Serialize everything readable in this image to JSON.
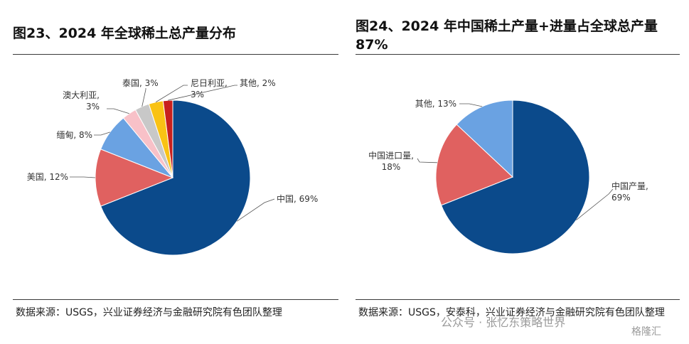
{
  "left_panel": {
    "title": "图23、2024 年全球稀土总产量分布",
    "source": "数据来源：USGS，兴业证券经济与金融研究院有色团队整理"
  },
  "right_panel": {
    "title": "图24、2024 年中国稀土产量+进量占全球总产量87%",
    "source": "数据来源：USGS，安泰科，兴业证券经济与金融研究院有色团队整理"
  },
  "watermark": {
    "text": "公众号 · 张忆东策略世界",
    "logo": "格隆汇"
  },
  "colors": {
    "china": "#0b4a8b",
    "red": "#e06160",
    "blue_light": "#6aa2e2",
    "pink": "#f8c1c8",
    "gray": "#c8c8c8",
    "yellow": "#f9c214",
    "darkred": "#c8201d"
  },
  "chart_data": [
    {
      "type": "pie",
      "title": "图23、2024 年全球稀土总产量分布",
      "slices": [
        {
          "label": "中国, 69%",
          "value": 69,
          "color": "#0b4a8b"
        },
        {
          "label": "美国, 12%",
          "value": 12,
          "color": "#e06160"
        },
        {
          "label": "缅甸, 8%",
          "value": 8,
          "color": "#6aa2e2"
        },
        {
          "label": "澳大利亚, 3%",
          "value": 3,
          "color": "#f8c1c8"
        },
        {
          "label": "泰国, 3%",
          "value": 3,
          "color": "#c8c8c8"
        },
        {
          "label": "尼日利亚, 3%",
          "value": 3,
          "color": "#f9c214"
        },
        {
          "label": "其他, 2%",
          "value": 2,
          "color": "#c8201d"
        }
      ]
    },
    {
      "type": "pie",
      "title": "图24、2024 年中国稀土产量+进量占全球总产量87%",
      "slices": [
        {
          "label": "中国产量, 69%",
          "value": 69,
          "color": "#0b4a8b"
        },
        {
          "label": "中国进口量, 18%",
          "value": 18,
          "color": "#e06160"
        },
        {
          "label": "其他, 13%",
          "value": 13,
          "color": "#6aa2e2"
        }
      ]
    }
  ]
}
